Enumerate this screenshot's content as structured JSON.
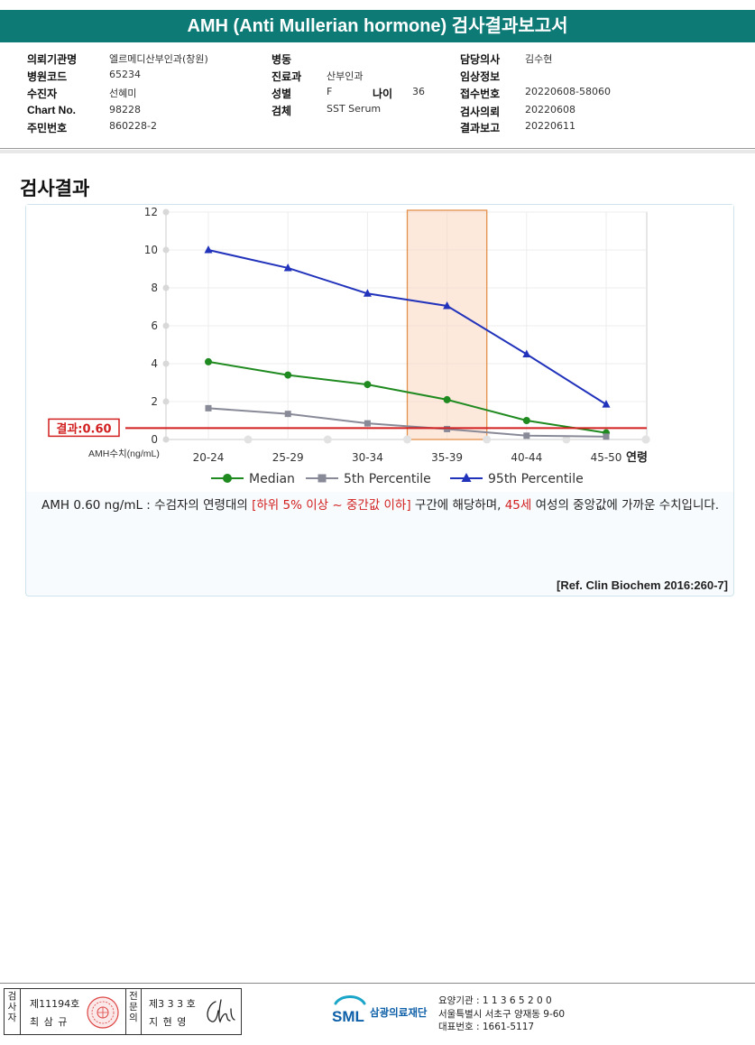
{
  "header": {
    "title": "AMH (Anti Mullerian hormone) 검사결과보고서"
  },
  "info": {
    "col1": [
      {
        "label": "의뢰기관명",
        "value": "엘르메디산부인과(창원)"
      },
      {
        "label": "병원코드",
        "value": "65234"
      },
      {
        "label": "수진자",
        "value": "선혜미"
      },
      {
        "label": "Chart No.",
        "value": "98228"
      },
      {
        "label": "주민번호",
        "value": "860228-2"
      }
    ],
    "col2": [
      {
        "label": "병동",
        "value": ""
      },
      {
        "label": "진료과",
        "value": "산부인과"
      },
      {
        "label": "성별",
        "value": "F"
      },
      {
        "label": "검체",
        "value": "SST Serum"
      }
    ],
    "age": {
      "label": "나이",
      "value": "36"
    },
    "col3": [
      {
        "label": "담당의사",
        "value": "김수현"
      },
      {
        "label": "임상정보",
        "value": ""
      },
      {
        "label": "접수번호",
        "value": "20220608-58060"
      },
      {
        "label": "검사의뢰",
        "value": "20220608"
      },
      {
        "label": "결과보고",
        "value": "20220611"
      }
    ]
  },
  "section_title": "검사결과",
  "chart_data": {
    "type": "line",
    "categories": [
      "20-24",
      "25-29",
      "30-34",
      "35-39",
      "40-44",
      "45-50"
    ],
    "series": [
      {
        "name": "Median",
        "values": [
          4.1,
          3.4,
          2.9,
          2.1,
          1.0,
          0.35
        ],
        "color": "#1f8a1f",
        "marker": "circle"
      },
      {
        "name": "5th Percentile",
        "values": [
          1.65,
          1.35,
          0.85,
          0.55,
          0.2,
          0.15
        ],
        "color": "#888a98",
        "marker": "square"
      },
      {
        "name": "95th Percentile",
        "values": [
          10.0,
          9.05,
          7.7,
          7.05,
          4.5,
          1.85
        ],
        "color": "#2233bb",
        "marker": "triangle"
      }
    ],
    "ylim": [
      0,
      12
    ],
    "yticks": [
      0,
      2,
      4,
      6,
      8,
      10,
      12
    ],
    "ylabel": "AMH수치(ng/mL)",
    "xlabel": "연령",
    "highlight_category": "35-39",
    "result": {
      "label": "결과:0.60",
      "value": 0.6,
      "color": "#d21f1f"
    },
    "grid": true,
    "legend_position": "bottom"
  },
  "description": {
    "part1": "AMH  0.60 ng/mL : 수검자의 연령대의 ",
    "highlight1": "[하위 5% 이상 ~ 중간값 이하]",
    "part2": "  구간에 해당하며, ",
    "highlight2": "45세",
    "part3": " 여성의 중앙값에 가까운 수치입니다."
  },
  "reference": "[Ref. Clin Biochem 2016:260-7]",
  "footer": {
    "inspector_label": "검사자",
    "inspector_no": "제11194호",
    "inspector_name": "최 삼 규",
    "checker_label": "전문의",
    "checker_no": "제3 3 3 호",
    "checker_name": "지 현 영",
    "org_logo": "SML",
    "org_name": "삼광의료재단",
    "org_code": "요양기관 : 1 1 3 6 5 2 0 0",
    "org_address": "서울특별시 서초구 양재동 9-60",
    "org_phone": "대표번호 : 1661-5117"
  }
}
